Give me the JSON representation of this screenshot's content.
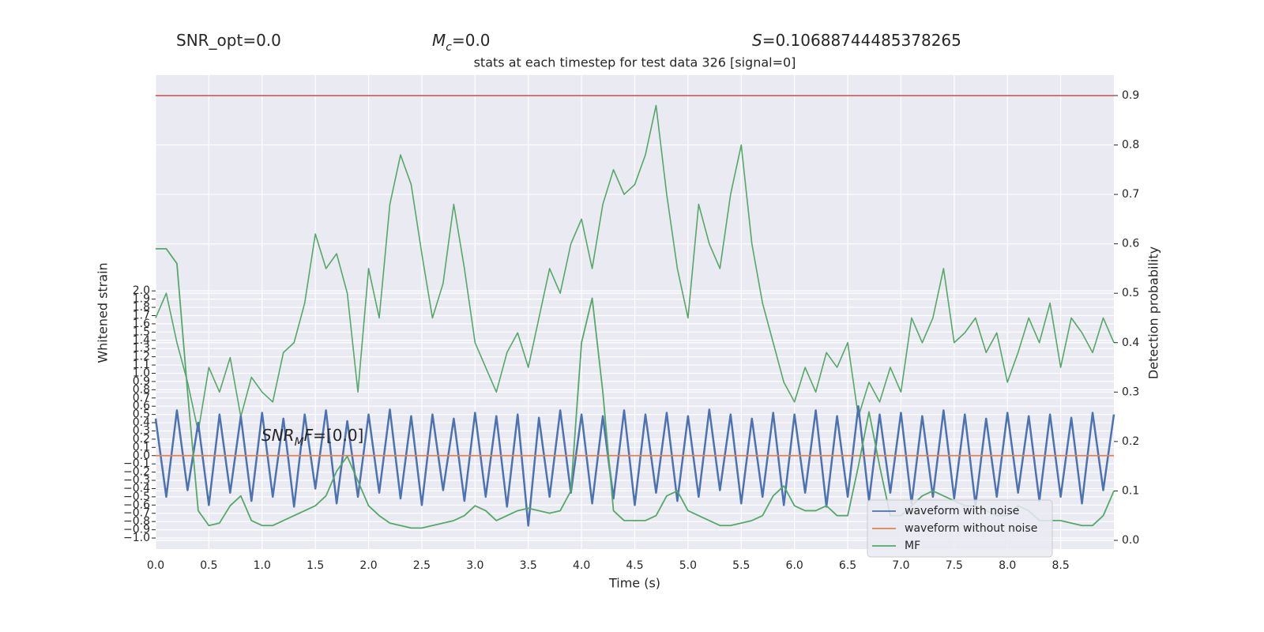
{
  "chart_data": {
    "type": "line",
    "annotations": {
      "snr_opt": {
        "text": "SNR_opt=0.0"
      },
      "mc": {
        "symbol": "M",
        "subscript": "c",
        "text": "=0.0"
      },
      "s": {
        "symbol": "S",
        "text": "=0.10688744485378265"
      },
      "snr_mf": {
        "symbol": "SNR",
        "subscript": "M",
        "symbol2": "F",
        "text": "=[0.0]"
      }
    },
    "title": "stats at each timestep for test data 326 [signal=0]",
    "xlabel": "Time (s)",
    "ylabel": "Whitened strain",
    "y2label": "Detection probability",
    "grid": true,
    "legend": "lower right",
    "xlim": [
      0,
      9
    ],
    "ylim": [
      -1.134,
      4.62
    ],
    "y2lim": [
      -0.0176,
      0.9415
    ],
    "xticks": [
      {
        "value": 0,
        "label": "0.0"
      },
      0.5,
      {
        "value": 1,
        "label": "1.0"
      },
      1.5,
      {
        "value": 2,
        "label": "2.0"
      },
      2.5,
      {
        "value": 3,
        "label": "3.0"
      },
      3.5,
      {
        "value": 4,
        "label": "4.0"
      },
      4.5,
      {
        "value": 5,
        "label": "5.0"
      },
      5.5,
      {
        "value": 6,
        "label": "6.0"
      },
      6.5,
      {
        "value": 7,
        "label": "7.0"
      },
      7.5,
      {
        "value": 8,
        "label": "8.0"
      },
      8.5
    ],
    "yticks": [
      {
        "value": -1,
        "label": "−1.0"
      },
      {
        "value": -0.9,
        "label": "−0.9"
      },
      {
        "value": -0.8,
        "label": "−0.8"
      },
      {
        "value": -0.7,
        "label": "−0.7"
      },
      {
        "value": -0.6,
        "label": "−0.6"
      },
      {
        "value": -0.5,
        "label": "−0.5"
      },
      {
        "value": -0.4,
        "label": "−0.4"
      },
      {
        "value": -0.3,
        "label": "−0.3"
      },
      {
        "value": -0.2,
        "label": "−0.2"
      },
      {
        "value": -0.1,
        "label": "−0.1"
      },
      {
        "value": 0,
        "label": "0.0"
      },
      0.1,
      0.2,
      0.3,
      0.4,
      0.5,
      0.6,
      0.7,
      0.8,
      0.9,
      {
        "value": 1,
        "label": "1.0"
      },
      1.1,
      1.2,
      1.3,
      1.4,
      1.5,
      1.6,
      1.7,
      1.8,
      1.9,
      {
        "value": 2,
        "label": "2.0"
      }
    ],
    "y2ticks": [
      {
        "value": 0,
        "label": "0.0"
      },
      0.1,
      0.2,
      0.3,
      0.4,
      0.5,
      0.6,
      0.7,
      0.8,
      0.9
    ],
    "threshold": {
      "value": 0.9,
      "color": "#c44e52",
      "axis": "y2"
    },
    "x": [
      0,
      0.1,
      0.2,
      0.3,
      0.4,
      0.5,
      0.6,
      0.7,
      0.8,
      0.9,
      1,
      1.1,
      1.2,
      1.3,
      1.4,
      1.5,
      1.6,
      1.7,
      1.8,
      1.9,
      2,
      2.1,
      2.2,
      2.3,
      2.4,
      2.5,
      2.6,
      2.7,
      2.8,
      2.9,
      3,
      3.1,
      3.2,
      3.3,
      3.4,
      3.5,
      3.6,
      3.7,
      3.8,
      3.9,
      4,
      4.1,
      4.2,
      4.3,
      4.4,
      4.5,
      4.6,
      4.7,
      4.8,
      4.9,
      5,
      5.1,
      5.2,
      5.3,
      5.4,
      5.5,
      5.6,
      5.7,
      5.8,
      5.9,
      6,
      6.1,
      6.2,
      6.3,
      6.4,
      6.5,
      6.6,
      6.7,
      6.8,
      6.9,
      7,
      7.1,
      7.2,
      7.3,
      7.4,
      7.5,
      7.6,
      7.7,
      7.8,
      7.9,
      8,
      8.1,
      8.2,
      8.3,
      8.4,
      8.5,
      8.6,
      8.7,
      8.8,
      8.9,
      9
    ],
    "series": [
      {
        "name": "waveform with noise",
        "color": "#4c72b0",
        "axis": "y",
        "values": [
          0.45,
          -0.5,
          0.55,
          -0.42,
          0.4,
          -0.6,
          0.5,
          -0.45,
          0.48,
          -0.55,
          0.52,
          -0.5,
          0.45,
          -0.62,
          0.5,
          -0.4,
          0.55,
          -0.58,
          0.42,
          -0.5,
          0.5,
          -0.45,
          0.56,
          -0.52,
          0.48,
          -0.6,
          0.5,
          -0.42,
          0.45,
          -0.55,
          0.52,
          -0.5,
          0.48,
          -0.62,
          0.5,
          -0.85,
          0.46,
          -0.5,
          0.55,
          -0.45,
          0.5,
          -0.58,
          0.48,
          -0.52,
          0.55,
          -0.6,
          0.5,
          -0.45,
          0.52,
          -0.55,
          0.48,
          -0.5,
          0.56,
          -0.42,
          0.5,
          -0.58,
          0.45,
          -0.5,
          0.52,
          -0.6,
          0.5,
          -0.45,
          0.55,
          -0.62,
          0.48,
          -0.5,
          0.6,
          -0.55,
          0.5,
          -0.45,
          0.52,
          -0.58,
          0.48,
          -0.5,
          0.55,
          -0.52,
          0.5,
          -0.6,
          0.45,
          -0.5,
          0.52,
          -0.45,
          0.48,
          -0.55,
          0.5,
          -0.5,
          0.46,
          -0.58,
          0.52,
          -0.42,
          0.5
        ]
      },
      {
        "name": "waveform without noise",
        "color": "#dd8452",
        "axis": "y",
        "values": [
          0,
          0,
          0,
          0,
          0,
          0,
          0,
          0,
          0,
          0,
          0,
          0,
          0,
          0,
          0,
          0,
          0,
          0,
          0,
          0,
          0,
          0,
          0,
          0,
          0,
          0,
          0,
          0,
          0,
          0,
          0,
          0,
          0,
          0,
          0,
          0,
          0,
          0,
          0,
          0,
          0,
          0,
          0,
          0,
          0,
          0,
          0,
          0,
          0,
          0,
          0,
          0,
          0,
          0,
          0,
          0,
          0,
          0,
          0,
          0,
          0,
          0,
          0,
          0,
          0,
          0,
          0,
          0,
          0,
          0,
          0,
          0,
          0,
          0,
          0,
          0,
          0,
          0,
          0,
          0,
          0,
          0,
          0,
          0,
          0,
          0,
          0,
          0,
          0,
          0,
          0
        ]
      },
      {
        "name": "MF",
        "color": "#55a868",
        "axis": "y2",
        "values": [
          0.59,
          0.59,
          0.56,
          0.3,
          0.06,
          0.03,
          0.035,
          0.07,
          0.09,
          0.04,
          0.03,
          0.03,
          0.04,
          0.05,
          0.06,
          0.07,
          0.09,
          0.14,
          0.17,
          0.12,
          0.07,
          0.05,
          0.035,
          0.03,
          0.025,
          0.025,
          0.03,
          0.035,
          0.04,
          0.05,
          0.07,
          0.06,
          0.04,
          0.05,
          0.06,
          0.065,
          0.06,
          0.055,
          0.06,
          0.1,
          0.4,
          0.49,
          0.3,
          0.06,
          0.04,
          0.04,
          0.04,
          0.05,
          0.09,
          0.1,
          0.06,
          0.05,
          0.04,
          0.03,
          0.03,
          0.035,
          0.04,
          0.05,
          0.09,
          0.11,
          0.07,
          0.06,
          0.06,
          0.07,
          0.05,
          0.05,
          0.15,
          0.26,
          0.15,
          0.05,
          0.05,
          0.07,
          0.09,
          0.1,
          0.09,
          0.08,
          0.07,
          0.07,
          0.06,
          0.05,
          0.05,
          0.07,
          0.06,
          0.04,
          0.04,
          0.04,
          0.035,
          0.03,
          0.03,
          0.05,
          0.1
        ]
      }
    ],
    "probability": {
      "color": "#55a868",
      "axis": "y2",
      "values": [
        0.45,
        0.5,
        0.4,
        0.32,
        0.22,
        0.35,
        0.3,
        0.37,
        0.25,
        0.33,
        0.3,
        0.28,
        0.38,
        0.4,
        0.48,
        0.62,
        0.55,
        0.58,
        0.5,
        0.3,
        0.55,
        0.45,
        0.68,
        0.78,
        0.72,
        0.58,
        0.45,
        0.52,
        0.68,
        0.55,
        0.4,
        0.35,
        0.3,
        0.38,
        0.42,
        0.35,
        0.45,
        0.55,
        0.5,
        0.6,
        0.65,
        0.55,
        0.68,
        0.75,
        0.7,
        0.72,
        0.78,
        0.88,
        0.7,
        0.55,
        0.45,
        0.68,
        0.6,
        0.55,
        0.7,
        0.8,
        0.6,
        0.48,
        0.4,
        0.32,
        0.28,
        0.35,
        0.3,
        0.38,
        0.35,
        0.4,
        0.25,
        0.32,
        0.28,
        0.35,
        0.3,
        0.45,
        0.4,
        0.45,
        0.55,
        0.4,
        0.42,
        0.45,
        0.38,
        0.42,
        0.32,
        0.38,
        0.45,
        0.4,
        0.48,
        0.35,
        0.45,
        0.42,
        0.38,
        0.45,
        0.4
      ]
    }
  }
}
